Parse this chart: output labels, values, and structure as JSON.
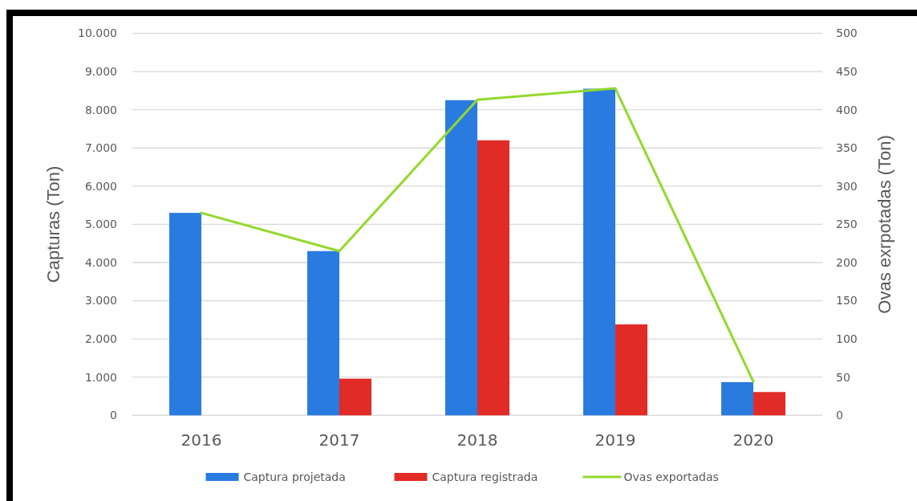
{
  "chart_data": {
    "type": "bar",
    "ylabel": "Capturas (Ton)",
    "y2label": "Ovas exrpotadas (Ton)",
    "categories": [
      "2016",
      "2017",
      "2018",
      "2019",
      "2020"
    ],
    "series": [
      {
        "name": "Captura projetada",
        "color": "#2a7be0",
        "values": [
          5300,
          4300,
          8250,
          8550,
          870
        ]
      },
      {
        "name": "Captura registrada",
        "color": "#e12b27",
        "values": [
          null,
          960,
          7200,
          2380,
          610
        ]
      },
      {
        "name": "Ovas exportadas",
        "type": "line",
        "axis": "y2",
        "color": "#94d82c",
        "values": [
          265,
          215,
          413,
          428,
          44
        ]
      }
    ],
    "ylim": [
      0,
      10000
    ],
    "yticks": [
      0,
      {
        "value": 1000,
        "label": "1.000"
      },
      {
        "value": 2000,
        "label": "2.000"
      },
      {
        "value": 3000,
        "label": "3.000"
      },
      {
        "value": 4000,
        "label": "4.000"
      },
      {
        "value": 5000,
        "label": "5.000"
      },
      {
        "value": 6000,
        "label": "6.000"
      },
      {
        "value": 7000,
        "label": "7.000"
      },
      {
        "value": 8000,
        "label": "8.000"
      },
      {
        "value": 9000,
        "label": "9.000"
      },
      {
        "value": 10000,
        "label": "10.000"
      }
    ],
    "y2lim": [
      0,
      500
    ],
    "y2ticks": [
      0,
      50,
      100,
      150,
      200,
      250,
      300,
      350,
      400,
      450,
      500
    ],
    "grid": "y",
    "legend": "bottom"
  }
}
